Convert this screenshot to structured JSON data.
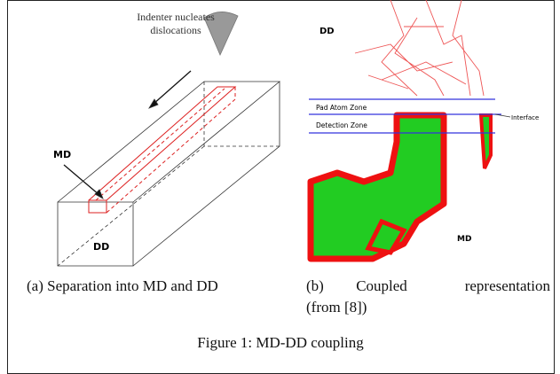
{
  "panel_a": {
    "indenter_label": [
      "Indenter nucleates",
      "dislocations"
    ],
    "md_label": "MD",
    "dd_label": "DD",
    "caption": "(a) Separation into MD and DD"
  },
  "panel_b": {
    "dd_label": "DD",
    "md_label": "MD",
    "pad_zone": "Pad Atom Zone",
    "interface": "Interface",
    "detection_zone": "Detection Zone",
    "caption": [
      "(b)",
      "Coupled",
      "representation",
      "(from [8])"
    ]
  },
  "figure_caption": "Figure 1: MD-DD coupling"
}
